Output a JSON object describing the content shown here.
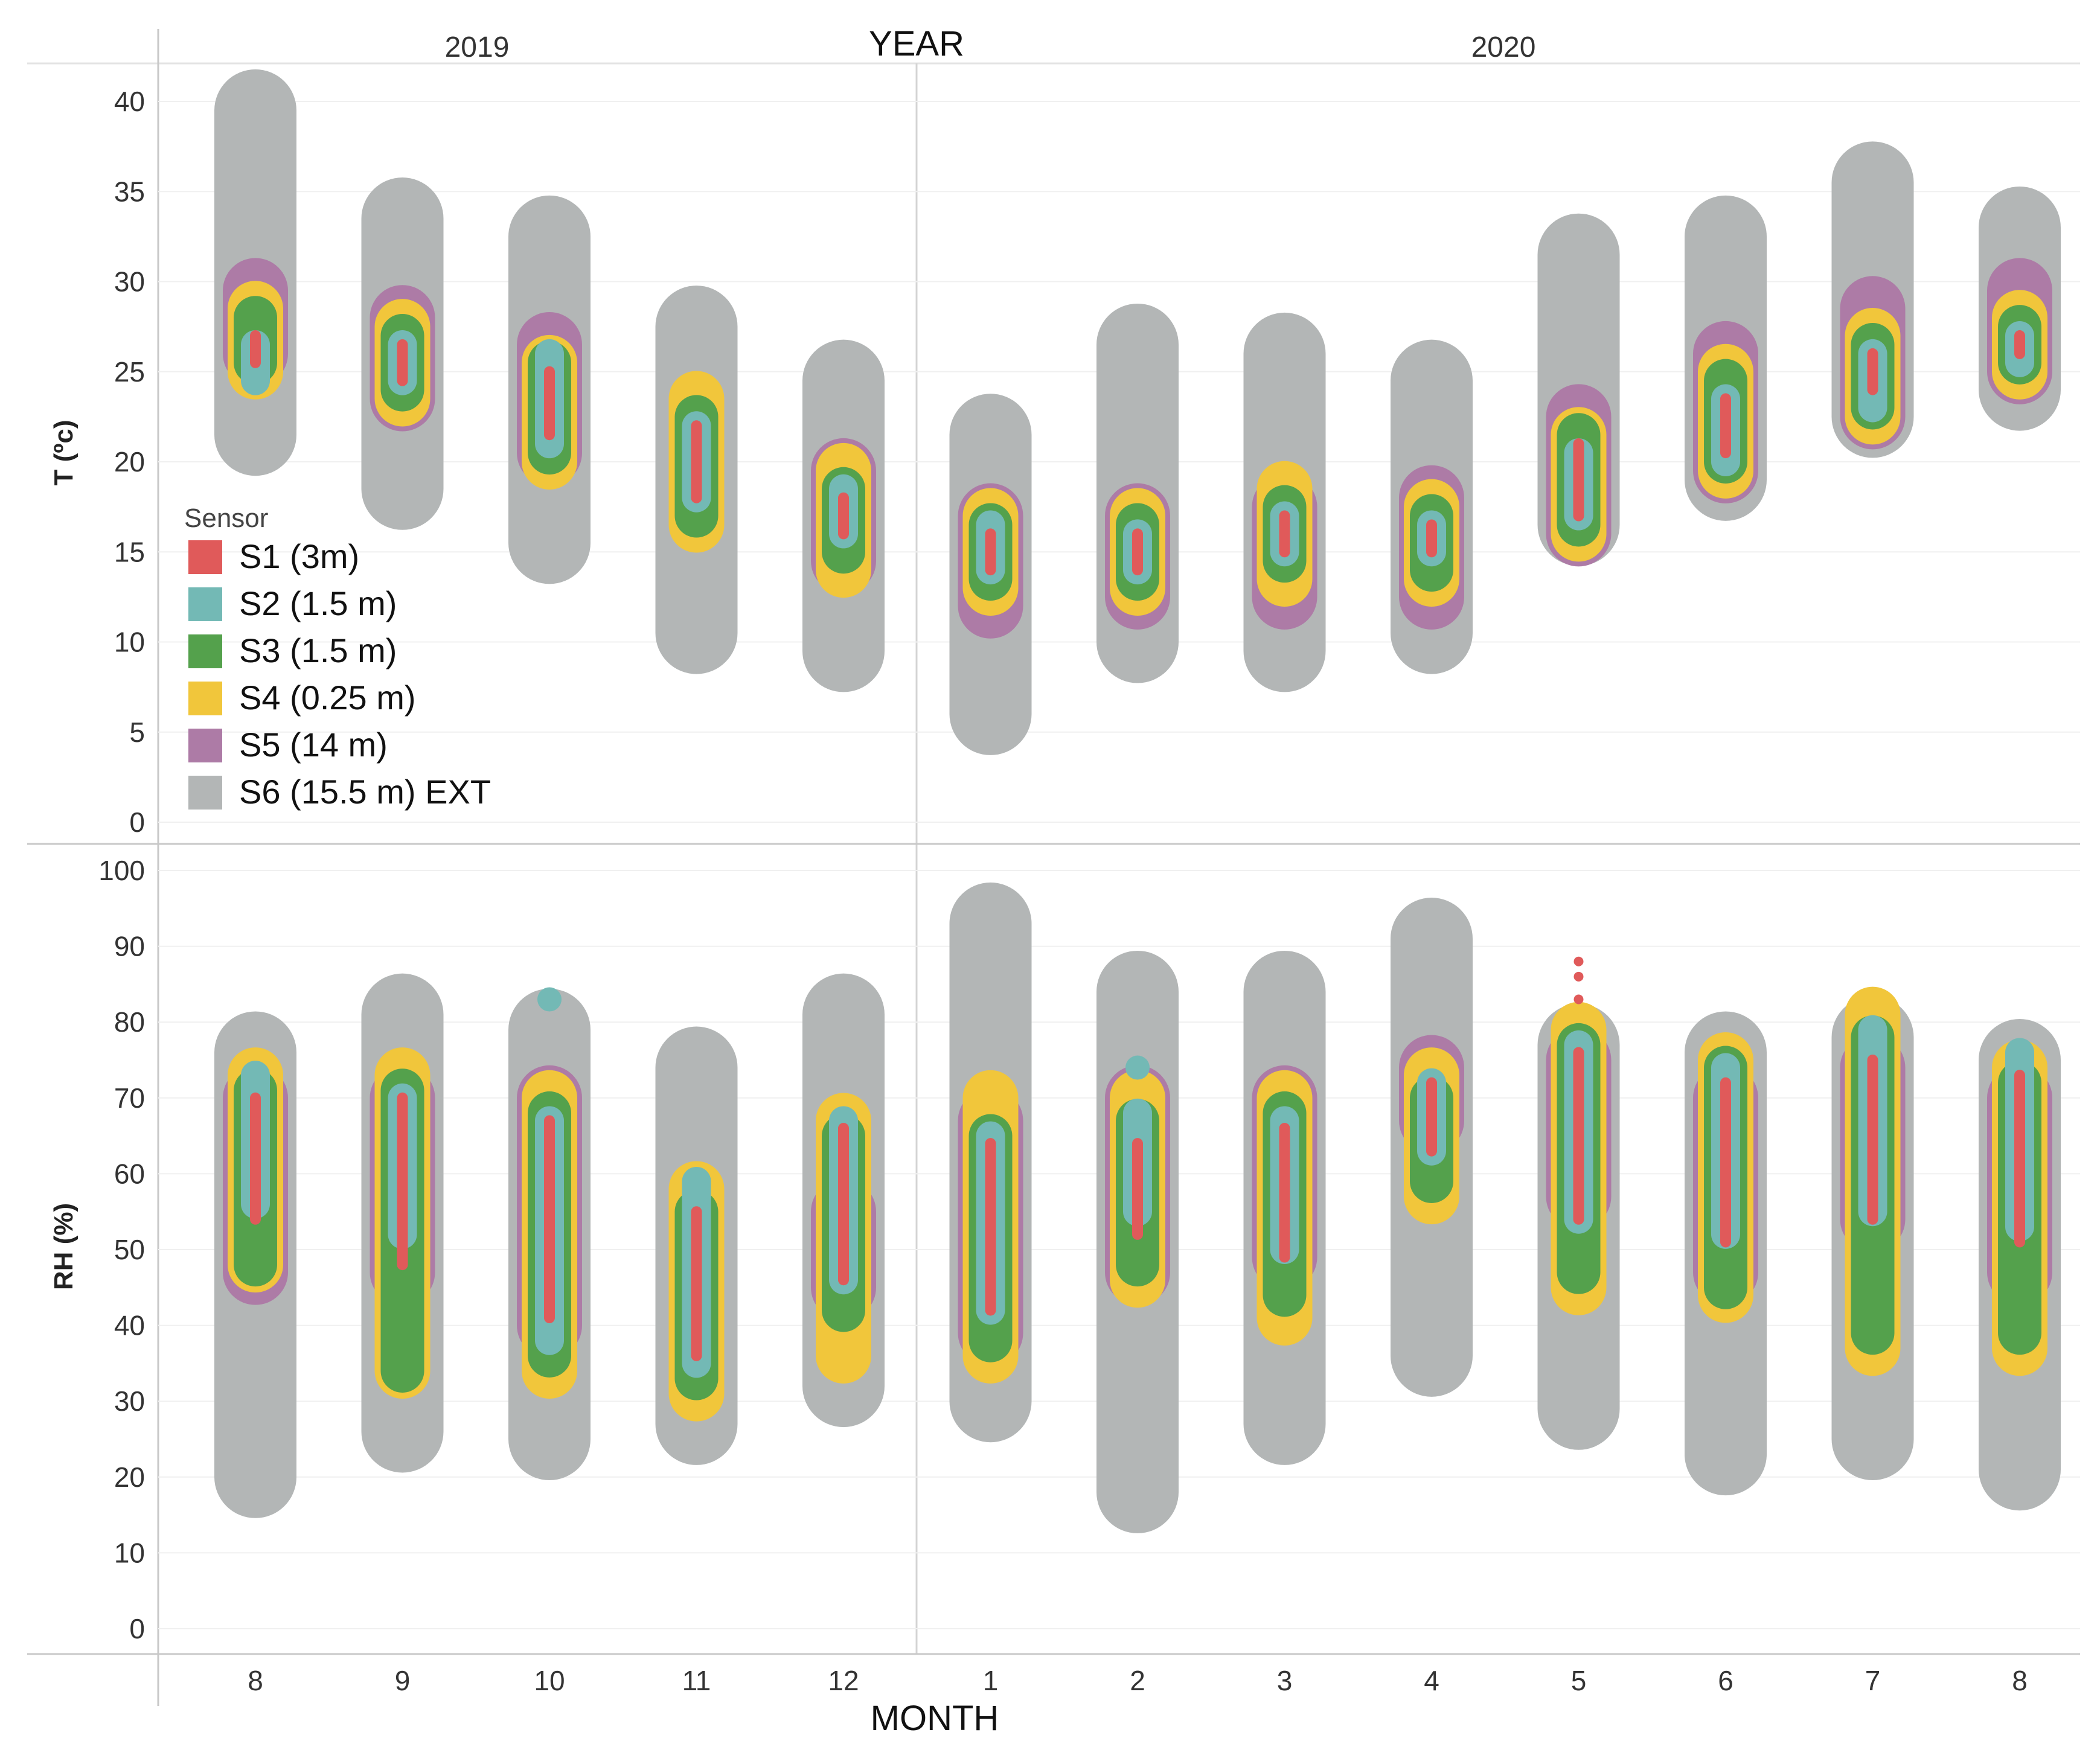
{
  "chart_data": {
    "type": "range-capsule",
    "title": "YEAR",
    "xlabel": "MONTH",
    "years": [
      "2019",
      "2020"
    ],
    "months": [
      "8",
      "9",
      "10",
      "11",
      "12",
      "1",
      "2",
      "3",
      "4",
      "5",
      "6",
      "7",
      "8"
    ],
    "legend": {
      "title": "Sensor",
      "items": [
        {
          "name": "S1 (3m)",
          "color": "#e05a5a"
        },
        {
          "name": "S2 (1.5 m)",
          "color": "#73b9b5"
        },
        {
          "name": "S3 (1.5 m)",
          "color": "#54a14c"
        },
        {
          "name": "S4 (0.25 m)",
          "color": "#f1c63b"
        },
        {
          "name": "S5 (14 m)",
          "color": "#ad7ba6"
        },
        {
          "name": "S6 (15.5 m) EXT",
          "color": "#b3b6b6"
        }
      ]
    },
    "panels": [
      {
        "id": "temperature",
        "ylabel": "T (ºc)",
        "ylim": [
          0,
          40
        ],
        "yticks": [
          "0",
          "5",
          "10",
          "15",
          "20",
          "25",
          "30",
          "35",
          "40"
        ],
        "series": [
          {
            "name": "S6 (15.5 m) EXT",
            "ranges": [
              [
                21.5,
                39.5
              ],
              [
                18.5,
                33.5
              ],
              [
                15.5,
                32.5
              ],
              [
                10.5,
                27.5
              ],
              [
                9.5,
                24.5
              ],
              [
                6,
                21.5
              ],
              [
                10,
                26.5
              ],
              [
                9.5,
                26
              ],
              [
                10.5,
                24.5
              ],
              [
                16.5,
                31.5
              ],
              [
                19,
                32.5
              ],
              [
                22.5,
                35.5
              ],
              [
                24,
                33
              ]
            ]
          },
          {
            "name": "S5 (14 m)",
            "ranges": [
              [
                26,
                29.5
              ],
              [
                23.5,
                28
              ],
              [
                20.5,
                26.5
              ],
              [
                null,
                null
              ],
              [
                14.5,
                19.5
              ],
              [
                12,
                17
              ],
              [
                12.5,
                17
              ],
              [
                12.5,
                17.5
              ],
              [
                12.5,
                18
              ],
              [
                16,
                22.5
              ],
              [
                19.5,
                26
              ],
              [
                22.5,
                28.5
              ],
              [
                25,
                29.5
              ]
            ]
          },
          {
            "name": "S4 (0.25 m)",
            "ranges": [
              [
                25,
                28.5
              ],
              [
                23.5,
                27.5
              ],
              [
                20,
                25.5
              ],
              [
                16.5,
                23.5
              ],
              [
                14,
                19.5
              ],
              [
                13,
                17
              ],
              [
                13,
                17
              ],
              [
                13.5,
                18.5
              ],
              [
                13.5,
                17.5
              ],
              [
                16,
                21.5
              ],
              [
                19.5,
                25
              ],
              [
                22.5,
                27
              ],
              [
                25,
                28
              ]
            ]
          },
          {
            "name": "S3 (1.5 m)",
            "ranges": [
              [
                25.5,
                28
              ],
              [
                24,
                27
              ],
              [
                20.5,
                25.5
              ],
              [
                17,
                22.5
              ],
              [
                15,
                18.5
              ],
              [
                13.5,
                16.5
              ],
              [
                13.5,
                16.5
              ],
              [
                14.5,
                17.5
              ],
              [
                14,
                17
              ],
              [
                16.5,
                21.5
              ],
              [
                20,
                24.5
              ],
              [
                23,
                26.5
              ],
              [
                25.5,
                27.5
              ]
            ]
          },
          {
            "name": "S2 (1.5 m)",
            "ranges": [
              [
                24.5,
                26.5
              ],
              [
                24.5,
                26.5
              ],
              [
                21,
                26
              ],
              [
                18,
                22
              ],
              [
                16,
                18.5
              ],
              [
                14,
                16.5
              ],
              [
                14,
                16
              ],
              [
                15,
                17
              ],
              [
                15,
                16.5
              ],
              [
                17,
                20.5
              ],
              [
                20,
                23.5
              ],
              [
                23,
                26
              ],
              [
                25.5,
                27
              ]
            ]
          },
          {
            "name": "S1 (3m)",
            "ranges": [
              [
                25.5,
                27
              ],
              [
                24.5,
                26.5
              ],
              [
                21.5,
                25
              ],
              [
                18,
                22
              ],
              [
                16,
                18
              ],
              [
                14,
                16
              ],
              [
                14,
                16
              ],
              [
                15,
                17
              ],
              [
                15,
                16.5
              ],
              [
                17,
                21
              ],
              [
                20.5,
                23.5
              ],
              [
                24,
                26
              ],
              [
                26,
                27
              ]
            ]
          }
        ]
      },
      {
        "id": "humidity",
        "ylabel": "RH (%)",
        "ylim": [
          0,
          100
        ],
        "yticks": [
          "0",
          "10",
          "20",
          "30",
          "40",
          "50",
          "60",
          "70",
          "80",
          "90",
          "100"
        ],
        "series": [
          {
            "name": "S6 (15.5 m) EXT",
            "ranges": [
              [
                20,
                76
              ],
              [
                26,
                81
              ],
              [
                25,
                79
              ],
              [
                27,
                74
              ],
              [
                32,
                81
              ],
              [
                30,
                93
              ],
              [
                18,
                84
              ],
              [
                27,
                84
              ],
              [
                36,
                91
              ],
              [
                29,
                77
              ],
              [
                23,
                76
              ],
              [
                25,
                78
              ],
              [
                21,
                75
              ]
            ]
          },
          {
            "name": "S5 (14 m)",
            "ranges": [
              [
                47,
                70
              ],
              [
                47,
                70
              ],
              [
                40,
                70
              ],
              [
                null,
                null
              ],
              [
                45,
                55
              ],
              [
                39,
                67
              ],
              [
                47,
                70
              ],
              [
                49,
                70
              ],
              [
                67,
                74
              ],
              [
                57,
                75
              ],
              [
                47,
                70
              ],
              [
                54,
                74
              ],
              [
                47,
                70
              ]
            ]
          },
          {
            "name": "S4 (0.25 m)",
            "ranges": [
              [
                48,
                73
              ],
              [
                34,
                73
              ],
              [
                34,
                70
              ],
              [
                31,
                58
              ],
              [
                36,
                67
              ],
              [
                36,
                70
              ],
              [
                46,
                70
              ],
              [
                41,
                70
              ],
              [
                57,
                73
              ],
              [
                45,
                79
              ],
              [
                44,
                75
              ],
              [
                37,
                81
              ],
              [
                37,
                74
              ]
            ]
          },
          {
            "name": "S3 (1.5 m)",
            "ranges": [
              [
                48,
                71
              ],
              [
                34,
                71
              ],
              [
                36,
                68
              ],
              [
                33,
                55
              ],
              [
                42,
                65
              ],
              [
                38,
                65
              ],
              [
                48,
                67
              ],
              [
                44,
                68
              ],
              [
                59,
                70
              ],
              [
                47,
                77
              ],
              [
                45,
                74
              ],
              [
                39,
                78
              ],
              [
                39,
                72
              ]
            ]
          },
          {
            "name": "S2 (1.5 m)",
            "ranges": [
              [
                56,
                73
              ],
              [
                52,
                70
              ],
              [
                38,
                67
              ],
              [
                35,
                59
              ],
              [
                46,
                67
              ],
              [
                42,
                65
              ],
              [
                55,
                68
              ],
              [
                50,
                67
              ],
              [
                63,
                72
              ],
              [
                54,
                77
              ],
              [
                52,
                74
              ],
              [
                55,
                79
              ],
              [
                53,
                76
              ]
            ]
          },
          {
            "name": "S1 (3m)",
            "ranges": [
              [
                54,
                70
              ],
              [
                48,
                70
              ],
              [
                41,
                67
              ],
              [
                36,
                55
              ],
              [
                46,
                66
              ],
              [
                42,
                64
              ],
              [
                52,
                64
              ],
              [
                49,
                66
              ],
              [
                63,
                72
              ],
              [
                54,
                76
              ],
              [
                51,
                72
              ],
              [
                54,
                75
              ],
              [
                51,
                73
              ]
            ]
          }
        ],
        "outliers": [
          {
            "series": "S2 (1.5 m)",
            "month_index": 2,
            "value": 83
          },
          {
            "series": "S2 (1.5 m)",
            "month_index": 6,
            "value": 74
          },
          {
            "series": "S1 (3m)",
            "month_index": 9,
            "value": 83
          },
          {
            "series": "S1 (3m)",
            "month_index": 9,
            "value": 86
          },
          {
            "series": "S1 (3m)",
            "month_index": 9,
            "value": 88
          }
        ]
      }
    ]
  }
}
